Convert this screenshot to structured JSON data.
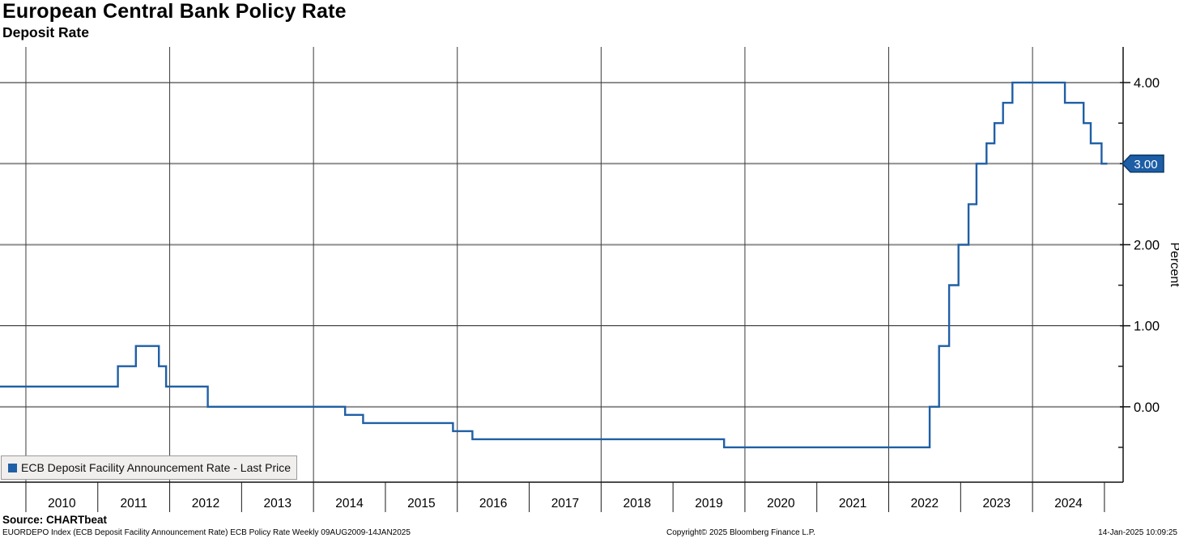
{
  "header": {
    "title": "European Central Bank Policy Rate",
    "subtitle": "Deposit Rate"
  },
  "legend": {
    "items": [
      {
        "label": "ECB Deposit Facility Announcement Rate - Last Price",
        "color": "#1f5fa5"
      }
    ]
  },
  "footer": {
    "source": "Source: CHARTbeat",
    "description": "EUORDEPO Index (ECB Deposit Facility Announcement Rate) ECB Policy Rate  Weekly 09AUG2009-14JAN2025",
    "copyright": "Copyright© 2025 Bloomberg Finance L.P.",
    "timestamp": "14-Jan-2025 10:09:25"
  },
  "y_axis": {
    "title": "Percent",
    "major_ticks": [
      {
        "v": 4,
        "label": "4.00"
      },
      {
        "v": 3,
        "label": "3.00"
      },
      {
        "v": 2,
        "label": "2.00"
      },
      {
        "v": 1,
        "label": "1.00"
      },
      {
        "v": 0,
        "label": "0.00"
      }
    ],
    "minor_ticks": [
      3.5,
      2.5,
      1.5,
      0.5,
      -0.5
    ],
    "last_price_badge": {
      "label": "3.00",
      "value": 3.0,
      "fill": "#1d5ea7",
      "border": "#0e3a66",
      "text_color": "#ffffff"
    }
  },
  "x_axis": {
    "year_labels": [
      "2010",
      "2011",
      "2012",
      "2013",
      "2014",
      "2015",
      "2016",
      "2017",
      "2018",
      "2019",
      "2020",
      "2021",
      "2022",
      "2023",
      "2024"
    ],
    "boundary_tick_years": [
      2010,
      2011,
      2012,
      2013,
      2014,
      2015,
      2016,
      2017,
      2018,
      2019,
      2020,
      2021,
      2022,
      2023,
      2024,
      2025
    ]
  },
  "chart_data": {
    "type": "line",
    "step": true,
    "title": "European Central Bank Policy Rate",
    "subtitle": "Deposit Rate",
    "ylabel": "Percent",
    "xlim": [
      2009.64,
      2025.26
    ],
    "ylim": [
      -0.93,
      4.44
    ],
    "x_gridline_years": [
      2010,
      2012,
      2014,
      2016,
      2018,
      2020,
      2022,
      2024
    ],
    "y_gridlines": [
      {
        "v": 4,
        "emphasis": true
      },
      {
        "v": 3,
        "emphasis": false
      },
      {
        "v": 2,
        "emphasis": false
      },
      {
        "v": 1,
        "emphasis": true
      },
      {
        "v": 0,
        "emphasis": false
      }
    ],
    "grid": true,
    "legend_position": "bottom-left",
    "last_price": 3.0,
    "series": [
      {
        "name": "ECB Deposit Facility Announcement Rate - Last Price",
        "color": "#1f5fa5",
        "points": [
          {
            "t": 2009.6,
            "v": 0.25
          },
          {
            "t": 2011.28,
            "v": 0.5
          },
          {
            "t": 2011.53,
            "v": 0.75
          },
          {
            "t": 2011.85,
            "v": 0.5
          },
          {
            "t": 2011.95,
            "v": 0.25
          },
          {
            "t": 2012.53,
            "v": 0.0
          },
          {
            "t": 2014.44,
            "v": -0.1
          },
          {
            "t": 2014.69,
            "v": -0.2
          },
          {
            "t": 2015.94,
            "v": -0.3
          },
          {
            "t": 2016.21,
            "v": -0.4
          },
          {
            "t": 2019.71,
            "v": -0.5
          },
          {
            "t": 2022.57,
            "v": 0.0
          },
          {
            "t": 2022.7,
            "v": 0.75
          },
          {
            "t": 2022.84,
            "v": 1.5
          },
          {
            "t": 2022.97,
            "v": 2.0
          },
          {
            "t": 2023.11,
            "v": 2.5
          },
          {
            "t": 2023.22,
            "v": 3.0
          },
          {
            "t": 2023.36,
            "v": 3.25
          },
          {
            "t": 2023.47,
            "v": 3.5
          },
          {
            "t": 2023.59,
            "v": 3.75
          },
          {
            "t": 2023.72,
            "v": 4.0
          },
          {
            "t": 2024.45,
            "v": 3.75
          },
          {
            "t": 2024.71,
            "v": 3.5
          },
          {
            "t": 2024.81,
            "v": 3.25
          },
          {
            "t": 2024.96,
            "v": 3.0
          },
          {
            "t": 2025.04,
            "v": 3.0
          }
        ]
      }
    ]
  }
}
